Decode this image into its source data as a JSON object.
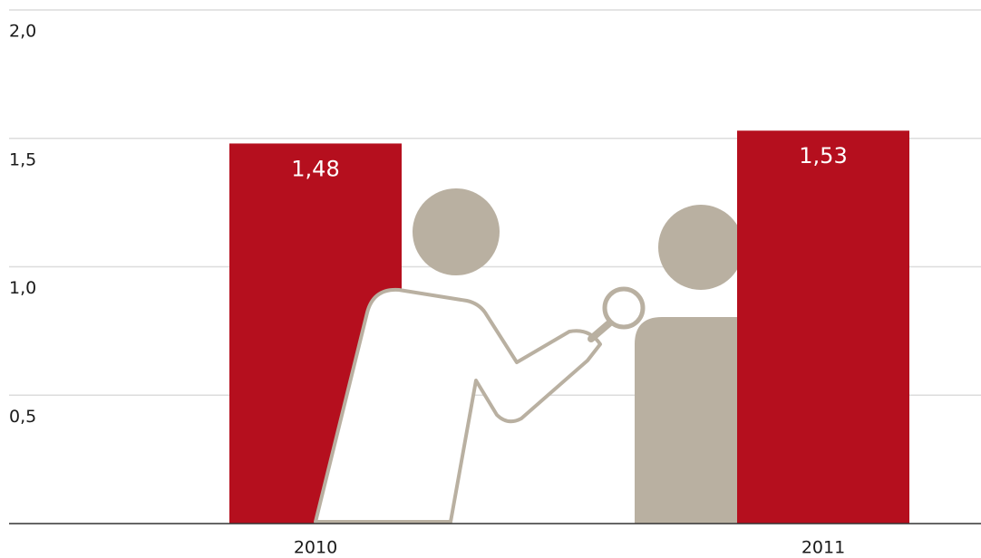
{
  "chart_data": {
    "type": "bar",
    "categories": [
      "2010",
      "2011"
    ],
    "values": [
      1.48,
      1.53
    ],
    "value_labels": [
      "1,48",
      "1,53"
    ],
    "color": "#b50f1e",
    "ylim": [
      0,
      2
    ],
    "yticks": [
      {
        "value": 0.5,
        "label": "0,5"
      },
      {
        "value": 1.0,
        "label": "1,0"
      },
      {
        "value": 1.5,
        "label": "1,5"
      },
      {
        "value": 2.0,
        "label": "2,0"
      }
    ],
    "grid": true
  }
}
